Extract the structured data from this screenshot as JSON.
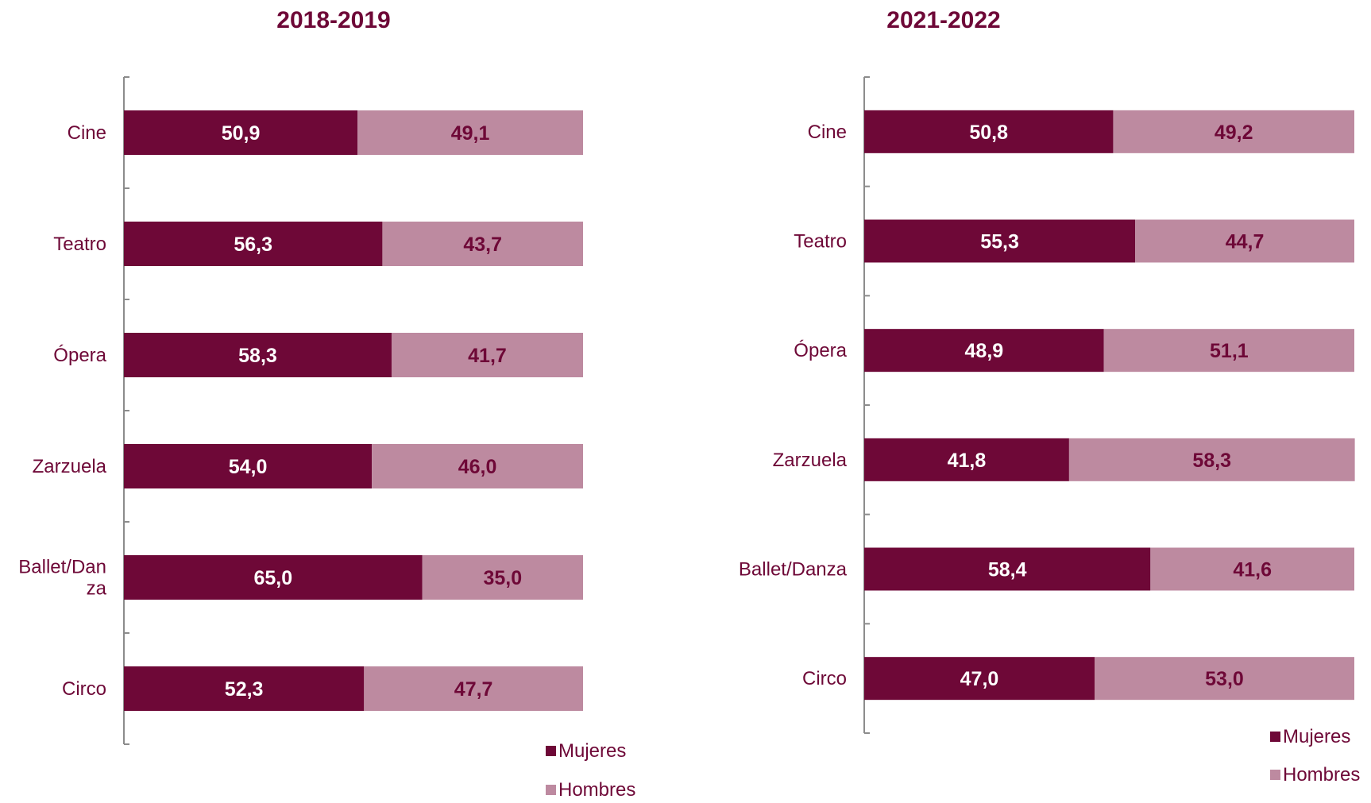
{
  "colors": {
    "mujeres": "#6e0837",
    "hombres": "#bd8aa0",
    "title": "#6e0837",
    "text": "#6e0837",
    "label_on_dark": "#ffffff",
    "label_on_light": "#6e0837",
    "axis": "#8c8c8c"
  },
  "chart_data": [
    {
      "type": "bar",
      "orientation": "horizontal",
      "stacked": true,
      "title": "2018-2019",
      "categories": [
        "Cine",
        "Teatro",
        "Ópera",
        "Zarzuela",
        "Ballet/Danza",
        "Circo"
      ],
      "category_label_lines": [
        [
          "Cine"
        ],
        [
          "Teatro"
        ],
        [
          "Ópera"
        ],
        [
          "Zarzuela"
        ],
        [
          "Ballet/Dan",
          "za"
        ],
        [
          "Circo"
        ]
      ],
      "series": [
        {
          "name": "Mujeres",
          "values": [
            50.9,
            56.3,
            58.3,
            54.0,
            65.0,
            52.3
          ],
          "labels": [
            "50,9",
            "56,3",
            "58,3",
            "54,0",
            "65,0",
            "52,3"
          ]
        },
        {
          "name": "Hombres",
          "values": [
            49.1,
            43.7,
            41.7,
            46.0,
            35.0,
            47.7
          ],
          "labels": [
            "49,1",
            "43,7",
            "41,7",
            "46,0",
            "35,0",
            "47,7"
          ]
        }
      ],
      "xlim": [
        0,
        100
      ],
      "grid": false,
      "legend_position": "bottom-right"
    },
    {
      "type": "bar",
      "orientation": "horizontal",
      "stacked": true,
      "title": "2021-2022",
      "categories": [
        "Cine",
        "Teatro",
        "Ópera",
        "Zarzuela",
        "Ballet/Danza",
        "Circo"
      ],
      "category_label_lines": [
        [
          "Cine"
        ],
        [
          "Teatro"
        ],
        [
          "Ópera"
        ],
        [
          "Zarzuela"
        ],
        [
          "Ballet/Danza"
        ],
        [
          "Circo"
        ]
      ],
      "series": [
        {
          "name": "Mujeres",
          "values": [
            50.8,
            55.3,
            48.9,
            41.8,
            58.4,
            47.0
          ],
          "labels": [
            "50,8",
            "55,3",
            "48,9",
            "41,8",
            "58,4",
            "47,0"
          ]
        },
        {
          "name": "Hombres",
          "values": [
            49.2,
            44.7,
            51.1,
            58.3,
            41.6,
            53.0
          ],
          "labels": [
            "49,2",
            "44,7",
            "51,1",
            "58,3",
            "41,6",
            "53,0"
          ]
        }
      ],
      "xlim": [
        0,
        100
      ],
      "grid": false,
      "legend_position": "bottom-right"
    }
  ]
}
